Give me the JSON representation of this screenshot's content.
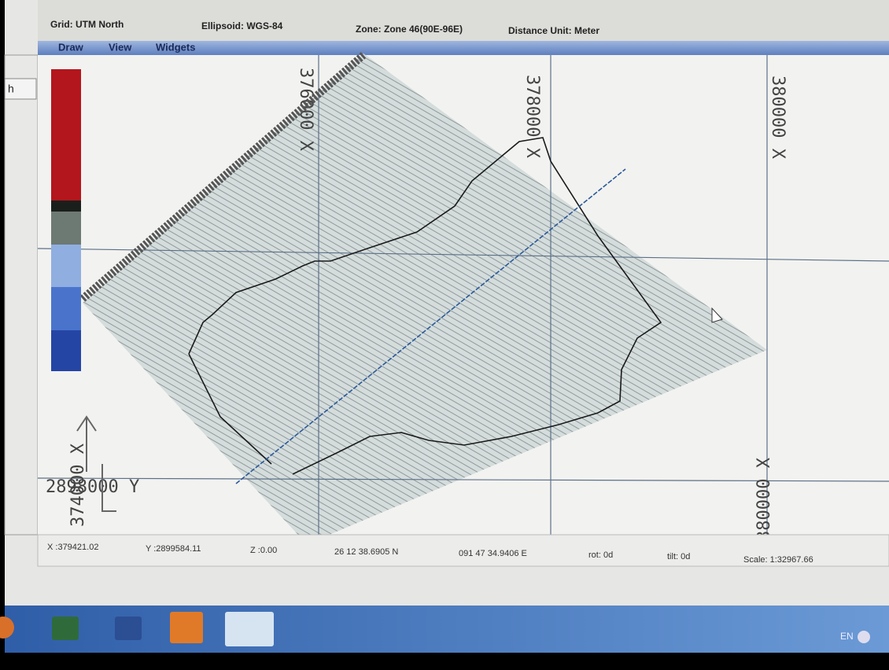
{
  "header": {
    "grid": "Grid: UTM North",
    "ellipsoid": "Ellipsoid: WGS-84",
    "zone": "Zone: Zone 46(90E-96E)",
    "distance_unit": "Distance Unit: Meter"
  },
  "menu": [
    "Draw",
    "View",
    "Widgets"
  ],
  "side_button": "h",
  "map": {
    "grid_labels": [
      "376000 X",
      "378000 X",
      "380000 X",
      "2898000 Y",
      "374000 X",
      "380000 X"
    ]
  },
  "status": {
    "x": "X :379421.02",
    "y": "Y :2899584.11",
    "z": "Z :0.00",
    "lat": "26 12 38.6905 N",
    "lon": "091 47 34.9406 E",
    "rot": "rot: 0d",
    "tilt": "tilt: 0d",
    "scale": "Scale: 1:32967.66"
  },
  "taskbar": {
    "language": "EN"
  }
}
